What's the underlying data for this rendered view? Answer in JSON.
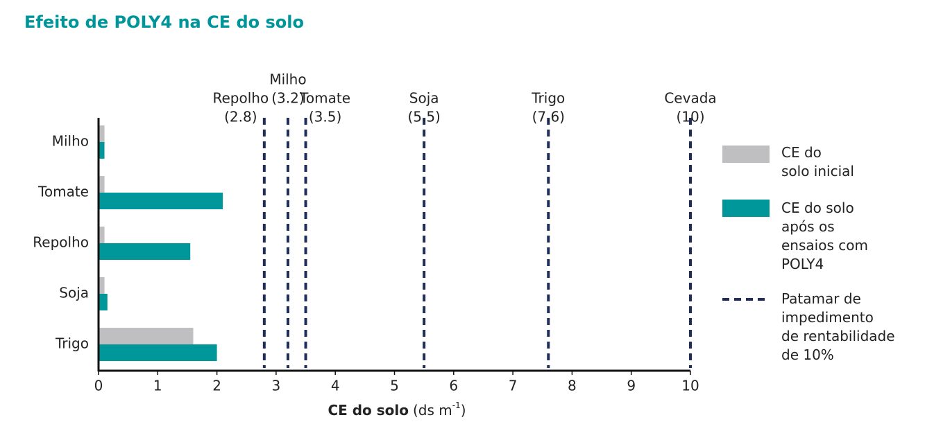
{
  "chart_data": {
    "type": "barh",
    "title": "Efeito de POLY4 na CE do solo",
    "categories": [
      "Milho",
      "Tomate",
      "Repolho",
      "Soja",
      "Trigo"
    ],
    "series": [
      {
        "name": "CE do\nsolo inicial",
        "color": "#bfbfc1",
        "values": [
          0.1,
          0.1,
          0.1,
          0.1,
          1.6
        ]
      },
      {
        "name": "CE do solo\napós os\nensaios com\nPOLY4",
        "color": "#00979a",
        "values": [
          0.1,
          2.1,
          1.55,
          0.15,
          2.0
        ]
      }
    ],
    "thresholds": {
      "name": "Patamar de\nimpedimento\nde rentabilidade\nde 10%",
      "color": "#1f2d5a",
      "categories": [
        "Repolho",
        "Milho",
        "Tomate",
        "Soja",
        "Trigo",
        "Cevada"
      ],
      "values": [
        2.8,
        3.2,
        3.5,
        5.5,
        7.6,
        10
      ],
      "value_labels": [
        "(2.8)",
        "(3.2)",
        "(3.5)",
        "(5.5)",
        "(7.6)",
        "(10)"
      ]
    },
    "xlabel": "CE do solo",
    "xunit": [
      "(ds m",
      "-1",
      ")"
    ],
    "xlim": [
      0,
      10
    ],
    "xticks": [
      0,
      1,
      2,
      3,
      4,
      5,
      6,
      7,
      8,
      9,
      10
    ]
  }
}
